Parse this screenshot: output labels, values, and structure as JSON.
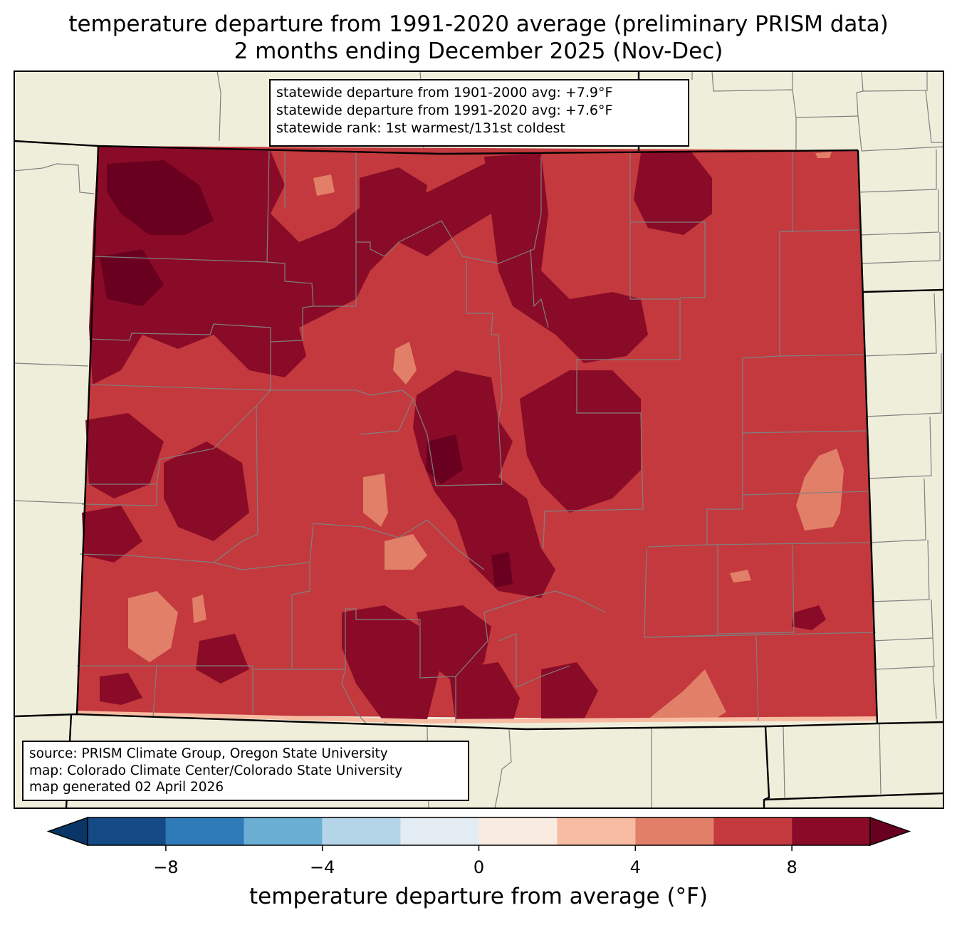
{
  "title": {
    "line1": "temperature departure from 1991-2020 average (preliminary PRISM data)",
    "line2": "2 months ending December 2025 (Nov-Dec)"
  },
  "stats_box": {
    "line1": "statewide departure from 1901-2000 avg: +7.9°F",
    "line2": "statewide departure from 1991-2020 avg: +7.6°F",
    "line3": "statewide rank: 1st warmest/131st coldest"
  },
  "source_box": {
    "line1": "source: PRISM Climate Group, Oregon State University",
    "line2": "map: Colorado Climate Center/Colorado State University",
    "line3": "map generated 02 April 2026"
  },
  "colorbar": {
    "label": "temperature departure from average (°F)",
    "min": -10,
    "max": 10,
    "ticks": [
      {
        "value": -8,
        "label": "−8"
      },
      {
        "value": -4,
        "label": "−4"
      },
      {
        "value": 0,
        "label": "0"
      },
      {
        "value": 4,
        "label": "4"
      },
      {
        "value": 8,
        "label": "8"
      }
    ],
    "bins": [
      {
        "from": -10,
        "to": -8,
        "color": "#144a86"
      },
      {
        "from": -8,
        "to": -6,
        "color": "#2f7ab8"
      },
      {
        "from": -6,
        "to": -4,
        "color": "#6aaed3"
      },
      {
        "from": -4,
        "to": -2,
        "color": "#b3d5e7"
      },
      {
        "from": -2,
        "to": 0,
        "color": "#e4ecf3"
      },
      {
        "from": 0,
        "to": 2,
        "color": "#faebe2"
      },
      {
        "from": 2,
        "to": 4,
        "color": "#f7bca2"
      },
      {
        "from": 4,
        "to": 6,
        "color": "#e17f68"
      },
      {
        "from": 6,
        "to": 8,
        "color": "#c3393d"
      },
      {
        "from": 8,
        "to": 10,
        "color": "#8a0b27"
      }
    ],
    "under_color": "#0a3567",
    "over_color": "#6a0020"
  },
  "map": {
    "land_color": "#efeedb",
    "border_color": "#000000",
    "county_line_color": "#808080"
  }
}
